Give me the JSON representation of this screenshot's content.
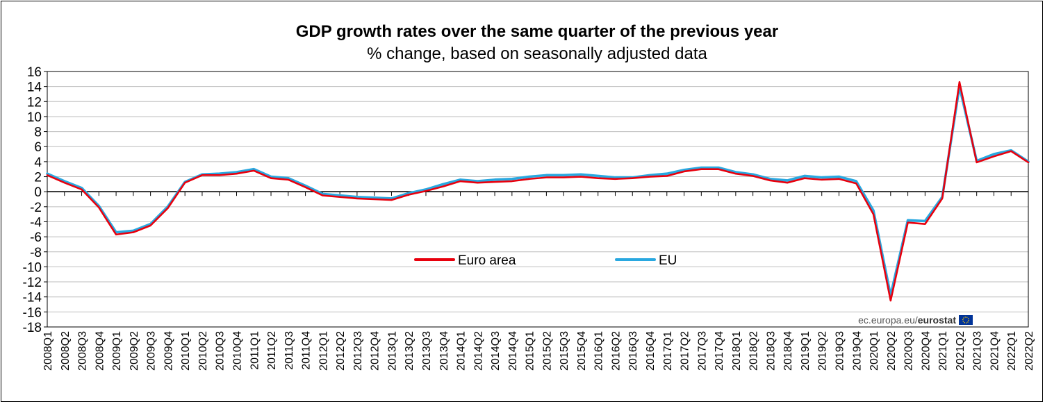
{
  "chart_data": {
    "type": "line",
    "title": "GDP growth rates over the same quarter of the previous year",
    "subtitle": "% change, based on seasonally adjusted data",
    "source": "ec.europa.eu/",
    "source_brand": "eurostat",
    "ylim": [
      -18,
      16
    ],
    "yticks": [
      -18,
      -16,
      -14,
      -12,
      -10,
      -8,
      -6,
      -4,
      -2,
      0,
      2,
      4,
      6,
      8,
      10,
      12,
      14,
      16
    ],
    "grid": true,
    "legend_position": "center",
    "categories": [
      "2008Q1",
      "2008Q2",
      "2008Q3",
      "2008Q4",
      "2009Q1",
      "2009Q2",
      "2009Q3",
      "2009Q4",
      "2010Q1",
      "2010Q2",
      "2010Q3",
      "2010Q4",
      "2011Q1",
      "2011Q2",
      "2011Q3",
      "2011Q4",
      "2012Q1",
      "2012Q2",
      "2012Q3",
      "2012Q4",
      "2013Q1",
      "2013Q2",
      "2013Q3",
      "2013Q4",
      "2014Q1",
      "2014Q2",
      "2014Q3",
      "2014Q4",
      "2015Q1",
      "2015Q2",
      "2015Q3",
      "2015Q4",
      "2016Q1",
      "2016Q2",
      "2016Q3",
      "2016Q4",
      "2017Q1",
      "2017Q2",
      "2017Q3",
      "2017Q4",
      "2018Q1",
      "2018Q2",
      "2018Q3",
      "2018Q4",
      "2019Q1",
      "2019Q2",
      "2019Q3",
      "2019Q4",
      "2020Q1",
      "2020Q2",
      "2020Q3",
      "2020Q4",
      "2021Q1",
      "2021Q2",
      "2021Q3",
      "2021Q4",
      "2022Q1",
      "2022Q2"
    ],
    "series": [
      {
        "name": "Euro area",
        "color": "#e8000d",
        "values": [
          2.2,
          1.2,
          0.3,
          -2.1,
          -5.7,
          -5.4,
          -4.5,
          -2.2,
          1.2,
          2.2,
          2.2,
          2.4,
          2.8,
          1.8,
          1.6,
          0.6,
          -0.5,
          -0.7,
          -0.9,
          -1.0,
          -1.1,
          -0.4,
          0.1,
          0.7,
          1.4,
          1.2,
          1.3,
          1.4,
          1.7,
          1.9,
          1.9,
          2.0,
          1.8,
          1.7,
          1.8,
          2.0,
          2.1,
          2.7,
          3.0,
          3.0,
          2.4,
          2.1,
          1.5,
          1.2,
          1.8,
          1.6,
          1.7,
          1.1,
          -3.0,
          -14.5,
          -4.1,
          -4.3,
          -0.9,
          14.6,
          3.9,
          4.7,
          5.4,
          3.9
        ]
      },
      {
        "name": "EU",
        "color": "#29a8e0",
        "values": [
          2.4,
          1.4,
          0.5,
          -1.9,
          -5.4,
          -5.2,
          -4.3,
          -2.0,
          1.3,
          2.3,
          2.4,
          2.6,
          3.0,
          2.0,
          1.8,
          0.8,
          -0.3,
          -0.5,
          -0.7,
          -0.8,
          -0.9,
          -0.2,
          0.3,
          1.0,
          1.6,
          1.4,
          1.6,
          1.7,
          2.0,
          2.2,
          2.2,
          2.3,
          2.1,
          1.9,
          1.9,
          2.2,
          2.4,
          2.9,
          3.2,
          3.2,
          2.6,
          2.3,
          1.7,
          1.5,
          2.1,
          1.9,
          2.0,
          1.4,
          -2.5,
          -13.8,
          -3.8,
          -3.9,
          -0.7,
          14.0,
          4.1,
          5.0,
          5.5,
          4.0
        ]
      }
    ]
  }
}
